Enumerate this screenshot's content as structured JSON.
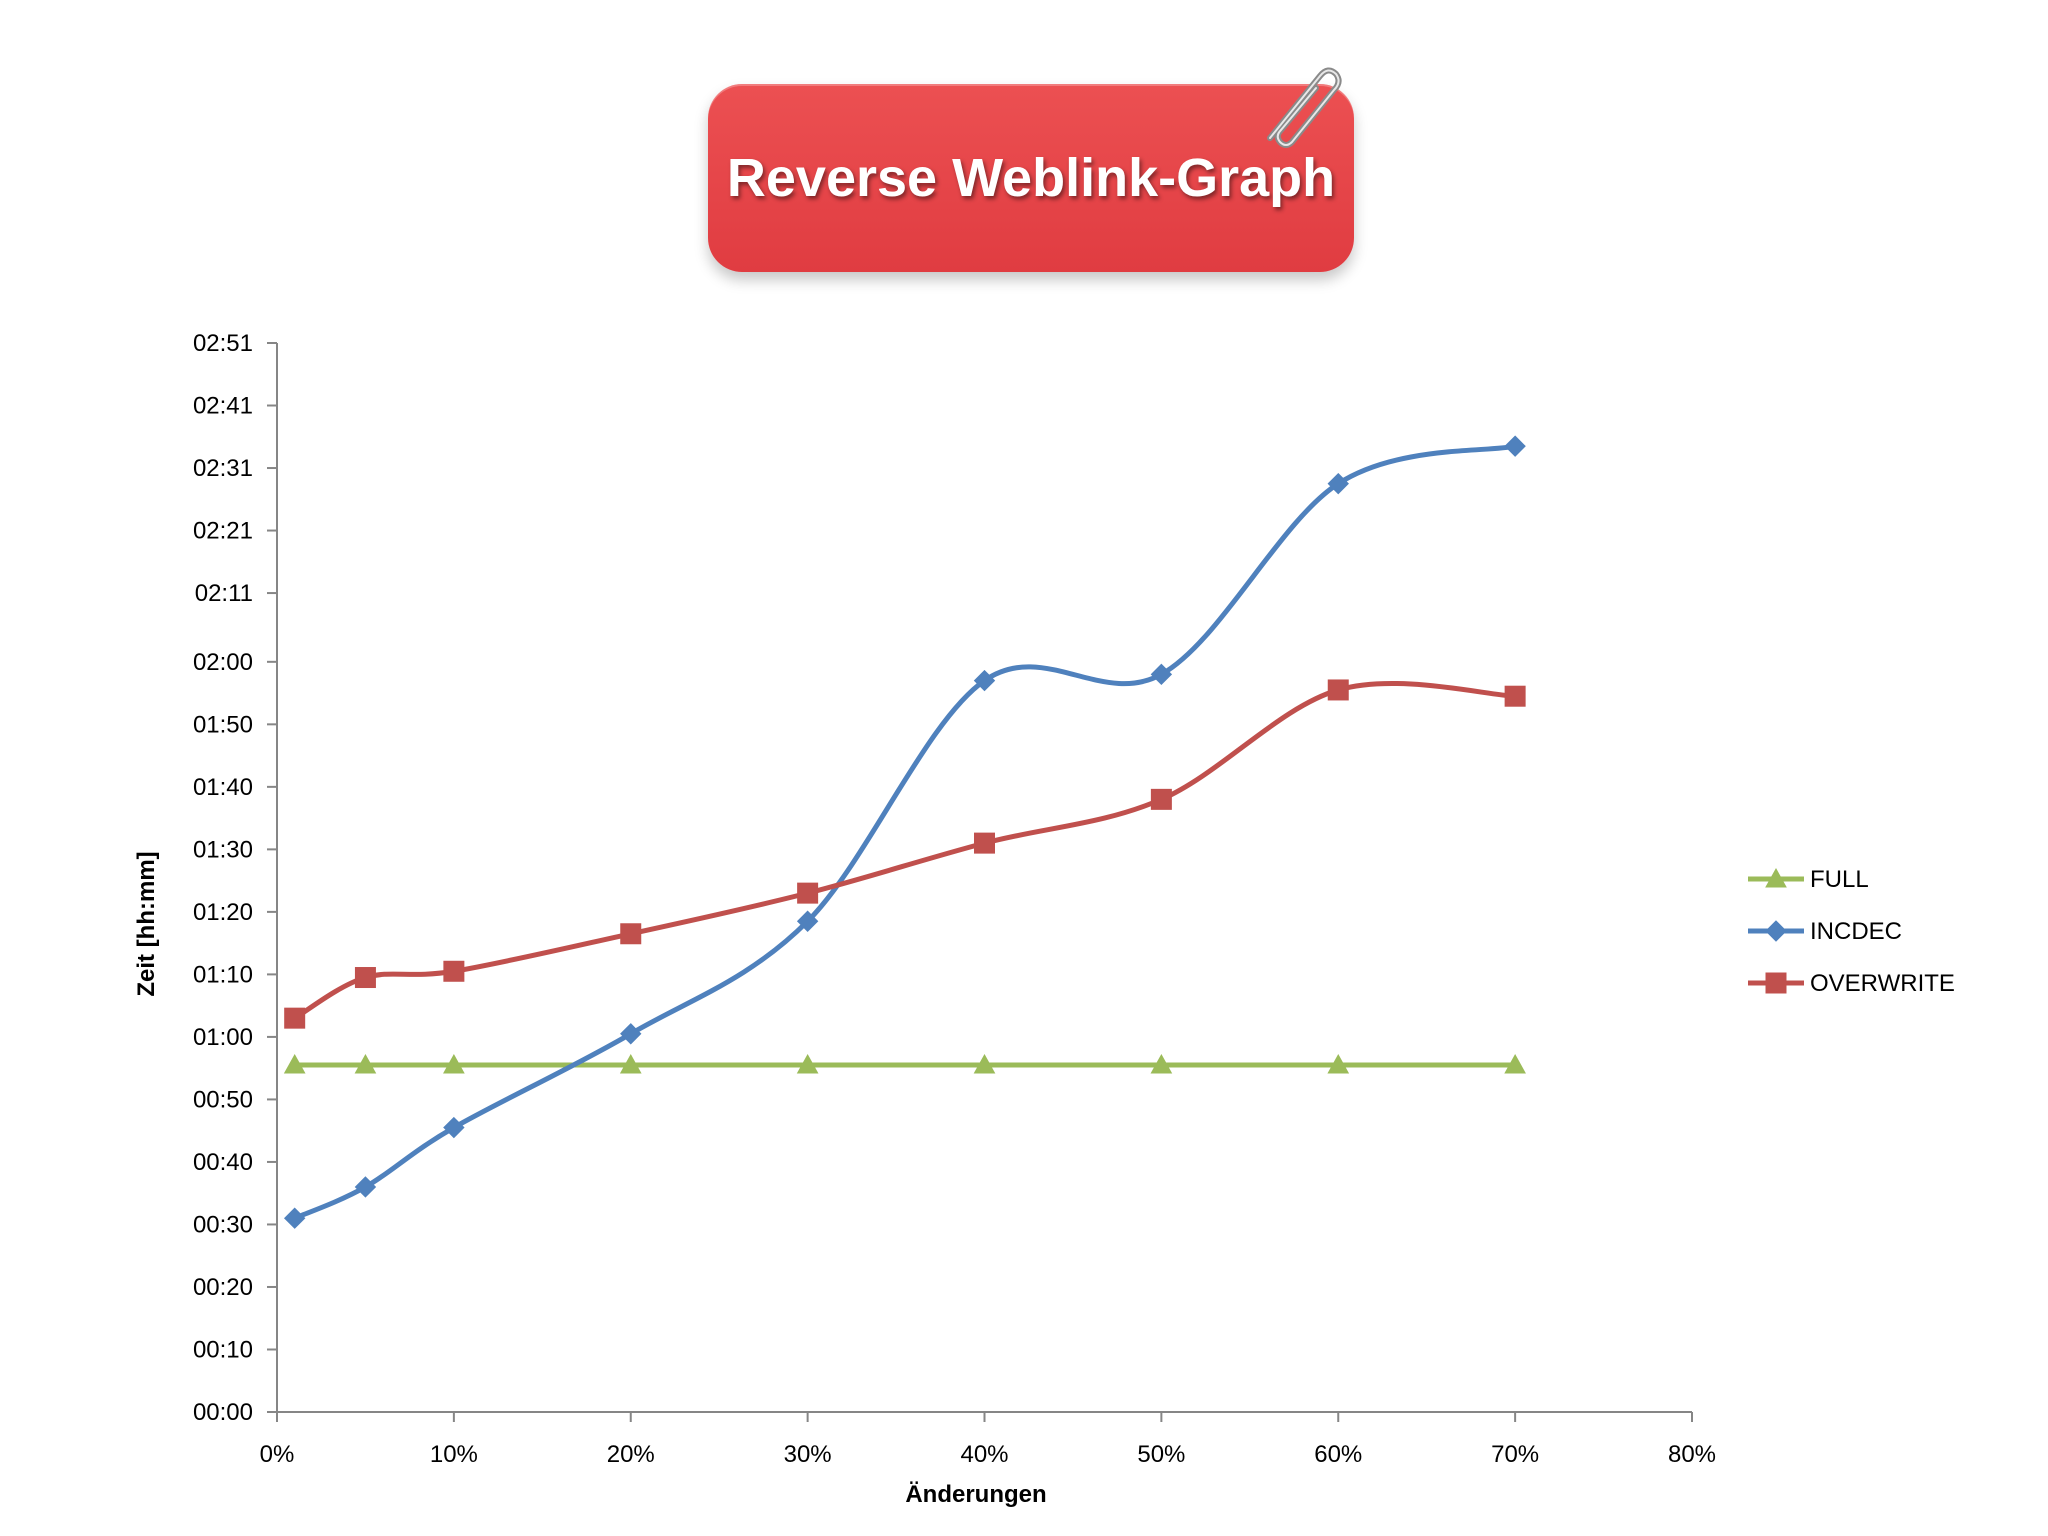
{
  "header": {
    "title": "Reverse Weblink-Graph"
  },
  "chart_data": {
    "type": "line",
    "title": "Reverse Weblink-Graph",
    "xlabel": "Änderungen",
    "ylabel": "Zeit [hh:mm]",
    "xlim": [
      0,
      80
    ],
    "ylim": [
      0,
      171
    ],
    "x_ticks": [
      0,
      10,
      20,
      30,
      40,
      50,
      60,
      70,
      80
    ],
    "x_tick_labels": [
      "0%",
      "10%",
      "20%",
      "30%",
      "40%",
      "50%",
      "60%",
      "70%",
      "80%"
    ],
    "y_ticks": [
      0,
      10,
      20,
      30,
      40,
      50,
      60,
      70,
      80,
      90,
      100,
      110,
      120,
      131,
      141,
      151,
      161,
      171
    ],
    "y_tick_labels": [
      "00:00",
      "00:10",
      "00:20",
      "00:30",
      "00:40",
      "00:50",
      "01:00",
      "01:10",
      "01:20",
      "01:30",
      "01:40",
      "01:50",
      "02:00",
      "02:11",
      "02:21",
      "02:31",
      "02:41",
      "02:51"
    ],
    "x": [
      1,
      5,
      10,
      20,
      30,
      40,
      50,
      60,
      70
    ],
    "series": [
      {
        "name": "FULL",
        "color": "#9bbb59",
        "marker": "triangle",
        "values": [
          55.5,
          55.5,
          55.5,
          55.5,
          55.5,
          55.5,
          55.5,
          55.5,
          55.5
        ]
      },
      {
        "name": "INCDEC",
        "color": "#4f81bd",
        "marker": "diamond",
        "values": [
          31,
          36,
          45.5,
          60.5,
          78.5,
          117,
          118,
          148.5,
          154.5
        ]
      },
      {
        "name": "OVERWRITE",
        "color": "#c0504d",
        "marker": "square",
        "values": [
          63,
          69.5,
          70.5,
          76.5,
          83,
          91,
          98,
          115.5,
          114.5
        ]
      }
    ],
    "legend": "right"
  }
}
